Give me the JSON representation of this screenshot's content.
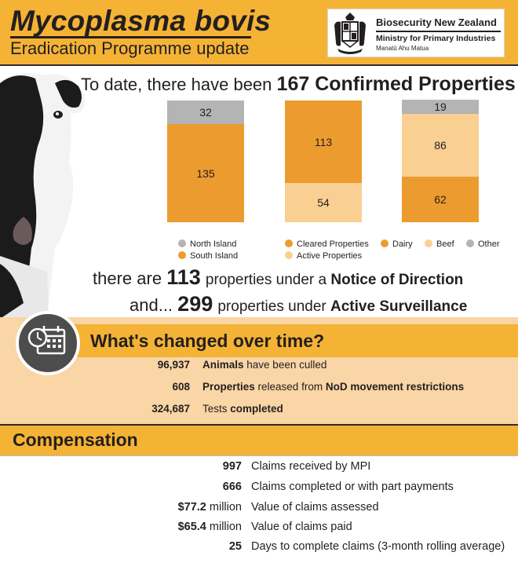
{
  "header": {
    "title": "Mycoplasma bovis",
    "subtitle": "Eradication Programme update",
    "org_name": "Biosecurity New Zealand",
    "ministry": "Ministry for Primary Industries",
    "maori_name": "Manatū Ahu Matua"
  },
  "headline": {
    "prefix": "To date, there have been",
    "emphasis": "167 Confirmed Properties"
  },
  "chart_data": [
    {
      "type": "bar",
      "stacked": true,
      "categories": [
        ""
      ],
      "series": [
        {
          "name": "South Island",
          "values": [
            135
          ],
          "color": "#ec9c2e"
        },
        {
          "name": "North Island",
          "values": [
            32
          ],
          "color": "#b4b4b4"
        }
      ],
      "legend": [
        "North Island",
        "South Island"
      ],
      "legend_placement": "bottom"
    },
    {
      "type": "bar",
      "stacked": true,
      "categories": [
        ""
      ],
      "series": [
        {
          "name": "Active Properties",
          "values": [
            54
          ],
          "color": "#f9cf92"
        },
        {
          "name": "Cleared Properties",
          "values": [
            113
          ],
          "color": "#ec9c2e"
        }
      ],
      "legend": [
        "Cleared Properties",
        "Active Properties"
      ],
      "legend_placement": "bottom"
    },
    {
      "type": "bar",
      "stacked": true,
      "categories": [
        ""
      ],
      "series": [
        {
          "name": "Dairy",
          "values": [
            62
          ],
          "color": "#ec9c2e"
        },
        {
          "name": "Beef",
          "values": [
            86
          ],
          "color": "#f9cf92"
        },
        {
          "name": "Other",
          "values": [
            19
          ],
          "color": "#b4b4b4"
        }
      ],
      "legend": [
        "Dairy",
        "Beef",
        "Other"
      ],
      "legend_placement": "bottom"
    }
  ],
  "legends": {
    "north_island": "North Island",
    "south_island": "South Island",
    "cleared": "Cleared Properties",
    "active": "Active Properties",
    "dairy": "Dairy",
    "beef": "Beef",
    "other": "Other"
  },
  "statements": {
    "nod": {
      "lead": "there are",
      "value": "113",
      "rest": "properties under a",
      "emph": "Notice of Direction"
    },
    "surveillance": {
      "lead": "and...",
      "value": "299",
      "rest": "properties under",
      "emph": "Active Surveillance"
    }
  },
  "changes": {
    "title": "What's changed over time?",
    "icon": "calendar-clock-icon",
    "items": [
      {
        "value": "96,937",
        "label_bold": "Animals",
        "label": " have been culled"
      },
      {
        "value": "608",
        "label_bold": "Properties",
        "label": " released from ",
        "label_bold2": "NoD movement restrictions"
      },
      {
        "value": "324,687",
        "label": "Tests ",
        "label_bold2": "completed"
      }
    ]
  },
  "compensation": {
    "title": "Compensation",
    "items": [
      {
        "value": "997",
        "unit": "",
        "label": "Claims received by MPI"
      },
      {
        "value": "666",
        "unit": "",
        "label": "Claims completed or with part payments"
      },
      {
        "value": "$77.2",
        "unit": " million",
        "label": "Value of claims assessed"
      },
      {
        "value": "$65.4",
        "unit": " million",
        "label": "Value of claims paid"
      },
      {
        "value": "25",
        "unit": "",
        "label": "Days to complete claims (3-month rolling average)"
      }
    ]
  },
  "colors": {
    "accent": "#f5b335",
    "orange": "#ec9c2e",
    "light_orange": "#f9cf92",
    "grey": "#b4b4b4",
    "band": "#fad5a5"
  }
}
